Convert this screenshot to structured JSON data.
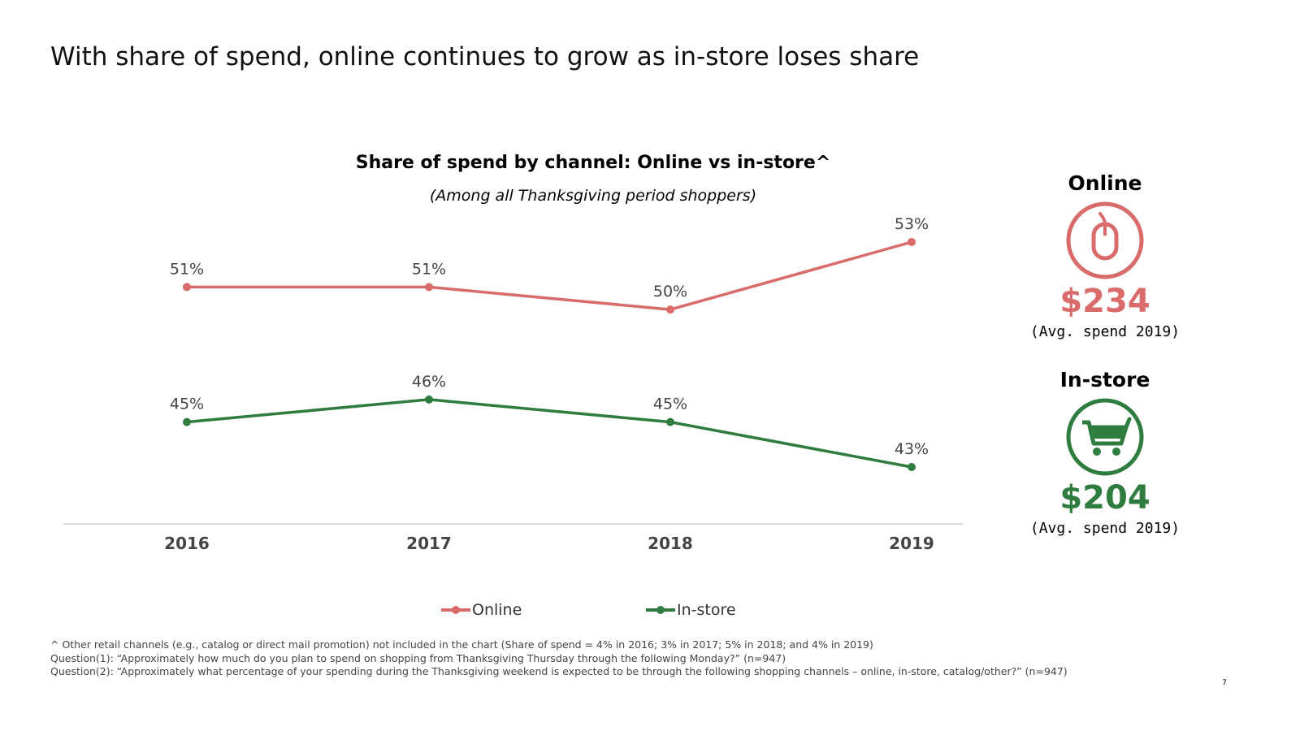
{
  "slide": {
    "title": "With share of spend, online continues to grow as in-store loses share",
    "page_number": "7"
  },
  "chart_data": {
    "type": "line",
    "title": "Share of spend by channel: Online vs in-store^",
    "subtitle": "(Among all Thanksgiving period shoppers)",
    "categories": [
      "2016",
      "2017",
      "2018",
      "2019"
    ],
    "series": [
      {
        "name": "Online",
        "values": [
          51,
          51,
          50,
          53
        ],
        "labels": [
          "51%",
          "51%",
          "50%",
          "53%"
        ],
        "color": "#d96b6b"
      },
      {
        "name": "In-store",
        "values": [
          45,
          46,
          45,
          43
        ],
        "labels": [
          "45%",
          "46%",
          "45%",
          "43%"
        ],
        "color": "#2e7d3f"
      }
    ],
    "xlabel": "",
    "ylabel": "",
    "grid": false,
    "legend_position": "bottom"
  },
  "side_panel": {
    "online": {
      "heading": "Online",
      "icon": "mouse-icon",
      "amount": "$234",
      "note": "(Avg. spend 2019)",
      "color": "#d96b6b"
    },
    "instore": {
      "heading": "In-store",
      "icon": "shopping-cart-icon",
      "amount": "$204",
      "note": "(Avg. spend 2019)",
      "color": "#2e7d3f"
    }
  },
  "footnotes": [
    "^ Other retail channels (e.g., catalog or direct mail promotion) not included in the chart (Share of spend = 4% in 2016; 3% in 2017; 5% in 2018; and 4% in 2019)",
    "Question(1): “Approximately how much do you plan to spend on shopping from Thanksgiving Thursday through the following Monday?” (n=947)",
    "Question(2): “Approximately what percentage of your spending during the Thanksgiving weekend is expected to be through the following shopping channels – online, in-store, catalog/other?” (n=947)"
  ]
}
